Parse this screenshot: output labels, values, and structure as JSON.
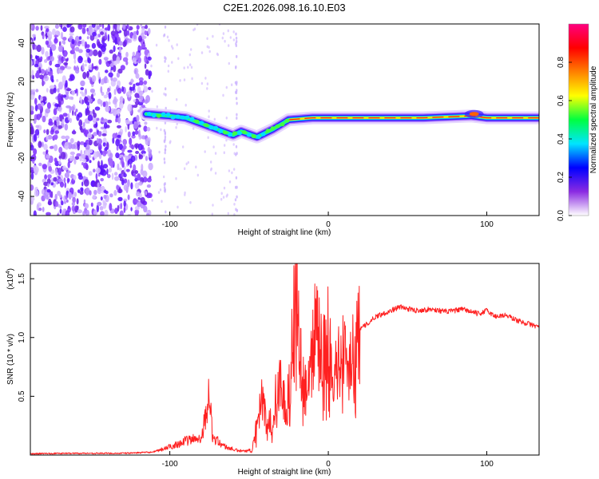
{
  "title": "C2E1.2026.098.16.10.E03",
  "chart_data": [
    {
      "type": "heatmap",
      "xlabel": "Height of straight line (km)",
      "ylabel": "Frequency (Hz)",
      "xlim": [
        -188,
        133
      ],
      "ylim": [
        -50,
        50
      ],
      "xticks": [
        -100,
        0,
        100
      ],
      "yticks": [
        -40,
        -20,
        0,
        20,
        40
      ],
      "colorbar": {
        "label": "Normalized spectral amplitude",
        "range": [
          0,
          1
        ],
        "ticks": [
          "0.0",
          "0.2",
          "0.4",
          "0.6",
          "0.8"
        ],
        "colors": [
          "#ffffff",
          "#8a2be2",
          "#0000ff",
          "#00e5ff",
          "#00ff40",
          "#ffff00",
          "#ff8000",
          "#ff0000",
          "#ff0080"
        ]
      },
      "ridge": [
        {
          "x": -115,
          "y": 3
        },
        {
          "x": -100,
          "y": 2
        },
        {
          "x": -90,
          "y": 1
        },
        {
          "x": -80,
          "y": -2
        },
        {
          "x": -70,
          "y": -5
        },
        {
          "x": -60,
          "y": -8
        },
        {
          "x": -55,
          "y": -6
        },
        {
          "x": -45,
          "y": -9
        },
        {
          "x": -35,
          "y": -5
        },
        {
          "x": -25,
          "y": 0
        },
        {
          "x": -10,
          "y": 1
        },
        {
          "x": 0,
          "y": 1
        },
        {
          "x": 20,
          "y": 1
        },
        {
          "x": 60,
          "y": 1
        },
        {
          "x": 90,
          "y": 2
        },
        {
          "x": 100,
          "y": 1
        },
        {
          "x": 133,
          "y": 1
        }
      ]
    },
    {
      "type": "line",
      "xlabel": "Height of straight line (km)",
      "ylabel": "SNR (10 * v/v)",
      "multiplier": "(x10",
      "multiplier_exp": "4",
      "multiplier_close": ")",
      "xlim": [
        -188,
        133
      ],
      "ylim": [
        0,
        16300
      ],
      "xticks": [
        -100,
        0,
        100
      ],
      "yticks": [
        {
          "value": 5000,
          "label": "0.5"
        },
        {
          "value": 10000,
          "label": "1.0"
        },
        {
          "value": 15000,
          "label": "1.5"
        }
      ],
      "color": "#ff2020",
      "series": [
        {
          "x": -188,
          "y": 120
        },
        {
          "x": -160,
          "y": 150
        },
        {
          "x": -130,
          "y": 150
        },
        {
          "x": -110,
          "y": 250
        },
        {
          "x": -100,
          "y": 700
        },
        {
          "x": -90,
          "y": 1200
        },
        {
          "x": -80,
          "y": 1500
        },
        {
          "x": -75,
          "y": 5200
        },
        {
          "x": -73,
          "y": 1500
        },
        {
          "x": -65,
          "y": 700
        },
        {
          "x": -58,
          "y": 400
        },
        {
          "x": -52,
          "y": 300
        },
        {
          "x": -48,
          "y": 500
        },
        {
          "x": -42,
          "y": 4500
        },
        {
          "x": -38,
          "y": 2500
        },
        {
          "x": -35,
          "y": 3500
        },
        {
          "x": -30,
          "y": 7000
        },
        {
          "x": -27,
          "y": 3500
        },
        {
          "x": -24,
          "y": 6500
        },
        {
          "x": -20,
          "y": 16200
        },
        {
          "x": -18,
          "y": 8000
        },
        {
          "x": -14,
          "y": 5500
        },
        {
          "x": -8,
          "y": 11500
        },
        {
          "x": -4,
          "y": 8000
        },
        {
          "x": 0,
          "y": 10000
        },
        {
          "x": 5,
          "y": 7000
        },
        {
          "x": 8,
          "y": 9500
        },
        {
          "x": 12,
          "y": 7500
        },
        {
          "x": 18,
          "y": 10500
        },
        {
          "x": 25,
          "y": 11200
        },
        {
          "x": 30,
          "y": 11800
        },
        {
          "x": 38,
          "y": 12200
        },
        {
          "x": 45,
          "y": 12600
        },
        {
          "x": 55,
          "y": 12300
        },
        {
          "x": 65,
          "y": 12400
        },
        {
          "x": 75,
          "y": 12200
        },
        {
          "x": 85,
          "y": 12400
        },
        {
          "x": 95,
          "y": 12000
        },
        {
          "x": 100,
          "y": 12300
        },
        {
          "x": 105,
          "y": 11800
        },
        {
          "x": 112,
          "y": 11900
        },
        {
          "x": 120,
          "y": 11400
        },
        {
          "x": 128,
          "y": 11100
        },
        {
          "x": 133,
          "y": 10900
        }
      ]
    }
  ]
}
